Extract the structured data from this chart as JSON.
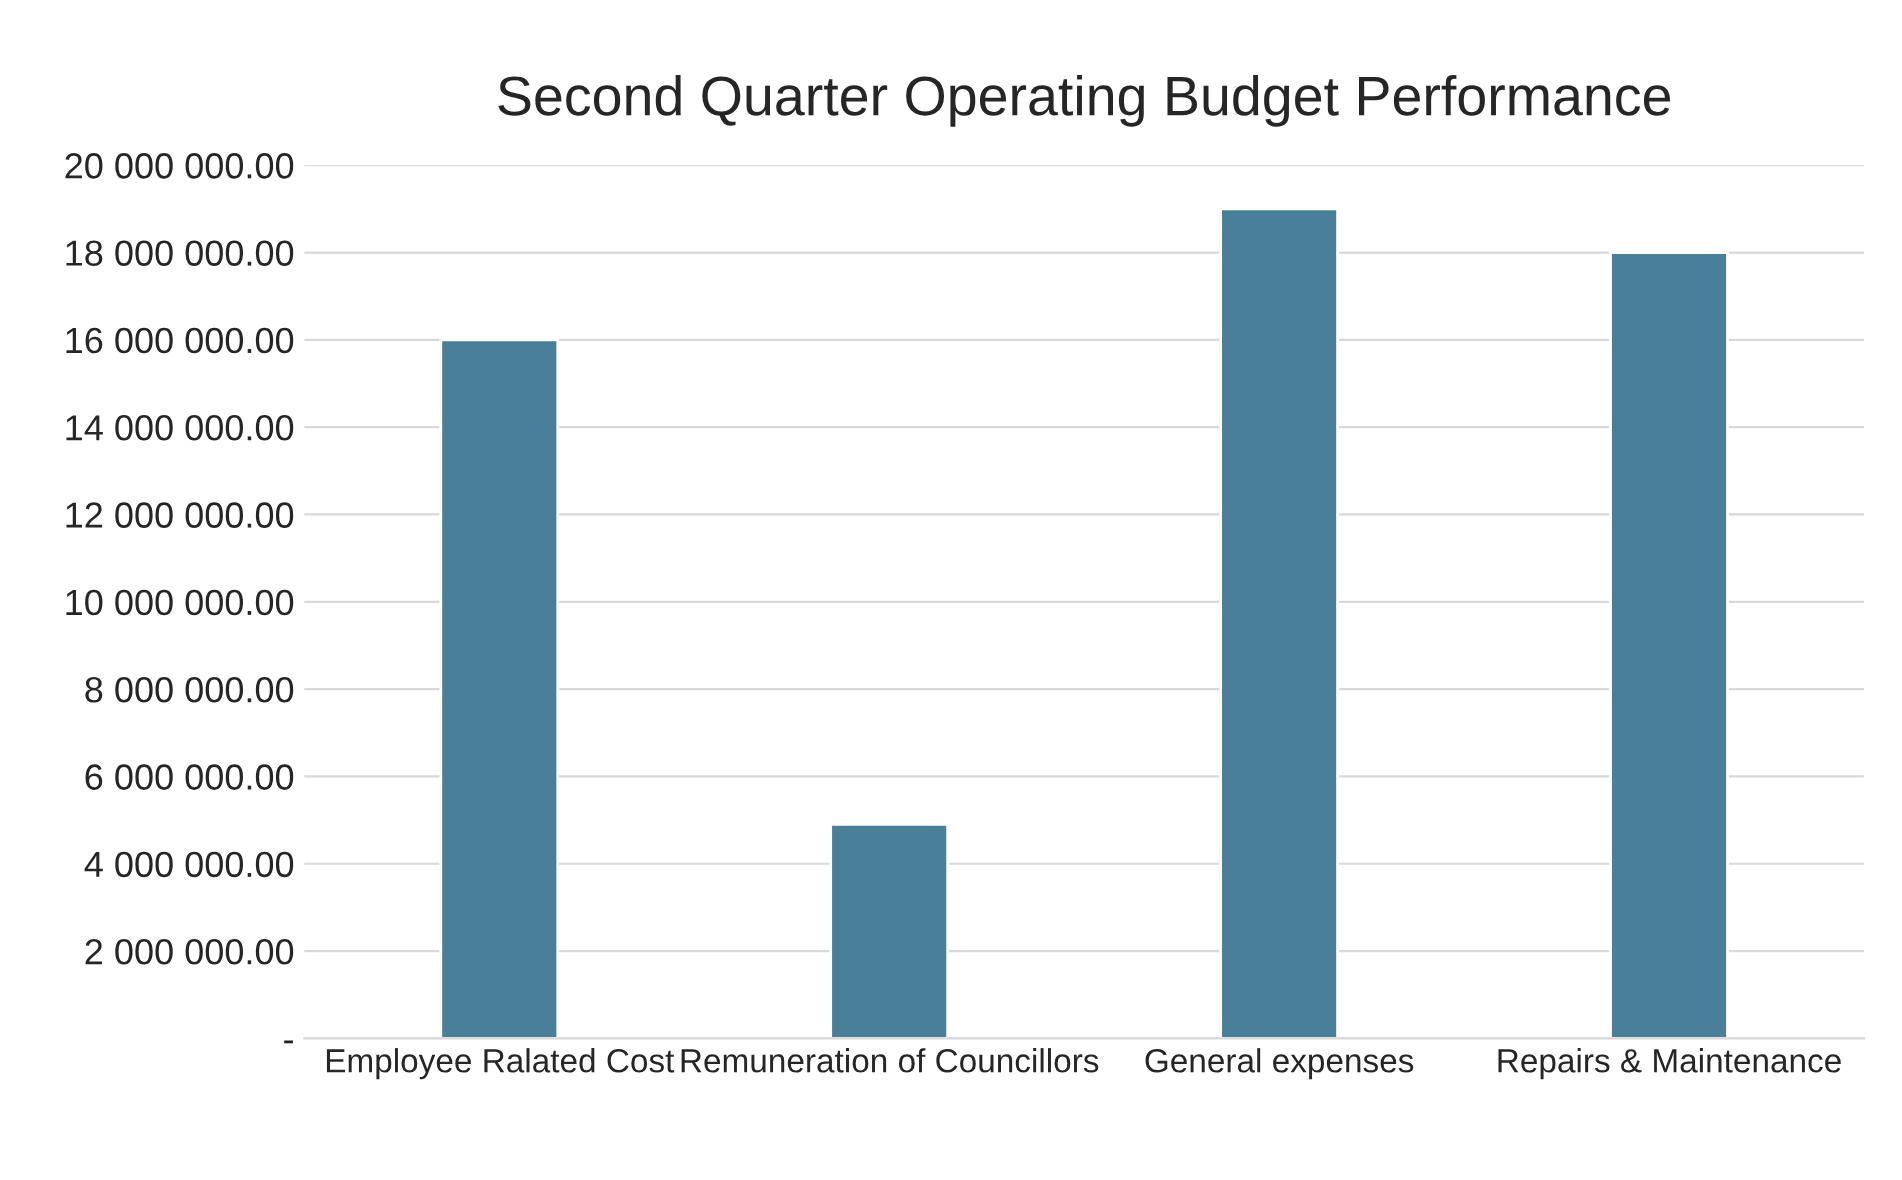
{
  "chart_data": {
    "type": "bar",
    "title": "Second Quarter Operating Budget Performance",
    "categories": [
      "Employee Ralated Cost",
      "Remuneration of Councillors",
      "General expenses",
      "Repairs & Maintenance"
    ],
    "values": [
      16000000,
      4900000,
      19000000,
      18000000
    ],
    "color": "#4a7f99",
    "ylim": [
      0,
      20000000
    ],
    "yticks": [
      {
        "value": 0,
        "label": "-"
      },
      {
        "value": 2000000,
        "label": "2 000 000.00"
      },
      {
        "value": 4000000,
        "label": "4 000 000.00"
      },
      {
        "value": 6000000,
        "label": "6 000 000.00"
      },
      {
        "value": 8000000,
        "label": "8 000 000.00"
      },
      {
        "value": 10000000,
        "label": "10 000 000.00"
      },
      {
        "value": 12000000,
        "label": "12 000 000.00"
      },
      {
        "value": 14000000,
        "label": "14 000 000.00"
      },
      {
        "value": 16000000,
        "label": "16 000 000.00"
      },
      {
        "value": 18000000,
        "label": "18 000 000.00"
      },
      {
        "value": 20000000,
        "label": "20 000 000.00"
      }
    ],
    "grid": "y",
    "legend": false
  }
}
